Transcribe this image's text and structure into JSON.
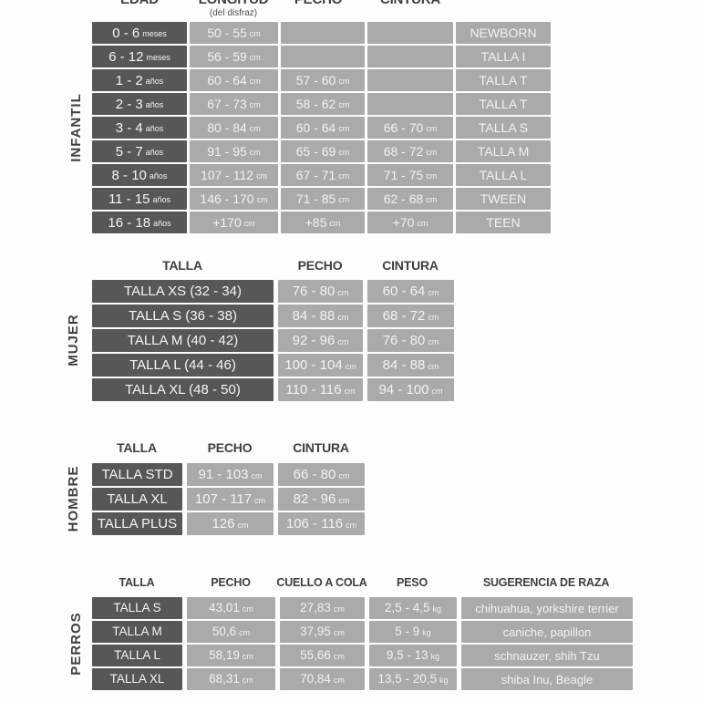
{
  "accent_colors": {
    "dark_cell": "#555759",
    "light_cell": "#a9aaac",
    "cell_text": "#f2f2f2",
    "header_text": "#3e4042",
    "background": "#fdfdfd"
  },
  "chart_data": [
    {
      "type": "table",
      "id": "infantil",
      "side_label": "INFANTIL",
      "headers": [
        {
          "label": "EDAD",
          "sub": ""
        },
        {
          "label": "LONGITUD",
          "sub": "(del disfraz)"
        },
        {
          "label": "PECHO",
          "sub": ""
        },
        {
          "label": "CINTURA",
          "sub": ""
        }
      ],
      "rows": [
        [
          {
            "t": "0 - 6",
            "u": "meses"
          },
          {
            "t": "50 - 55",
            "u": "cm"
          },
          {
            "t": ""
          },
          {
            "t": ""
          },
          {
            "t": "NEWBORN"
          }
        ],
        [
          {
            "t": "6 - 12",
            "u": "meses"
          },
          {
            "t": "56 - 59",
            "u": "cm"
          },
          {
            "t": ""
          },
          {
            "t": ""
          },
          {
            "t": "TALLA I"
          }
        ],
        [
          {
            "t": "1 - 2",
            "u": "años"
          },
          {
            "t": "60 - 64",
            "u": "cm"
          },
          {
            "t": "57 - 60",
            "u": "cm"
          },
          {
            "t": ""
          },
          {
            "t": "TALLA T"
          }
        ],
        [
          {
            "t": "2 - 3",
            "u": "años"
          },
          {
            "t": "67 - 73",
            "u": "cm"
          },
          {
            "t": "58 - 62",
            "u": "cm"
          },
          {
            "t": ""
          },
          {
            "t": "TALLA T"
          }
        ],
        [
          {
            "t": "3 - 4",
            "u": "años"
          },
          {
            "t": "80 - 84",
            "u": "cm"
          },
          {
            "t": "60 - 64",
            "u": "cm"
          },
          {
            "t": "66 - 70",
            "u": "cm"
          },
          {
            "t": "TALLA S"
          }
        ],
        [
          {
            "t": "5 - 7",
            "u": "años"
          },
          {
            "t": "91 - 95",
            "u": "cm"
          },
          {
            "t": "65 - 69",
            "u": "cm"
          },
          {
            "t": "68 - 72",
            "u": "cm"
          },
          {
            "t": "TALLA M"
          }
        ],
        [
          {
            "t": "8 - 10",
            "u": "años"
          },
          {
            "t": "107 - 112",
            "u": "cm"
          },
          {
            "t": "67 - 71",
            "u": "cm"
          },
          {
            "t": "71 - 75",
            "u": "cm"
          },
          {
            "t": "TALLA L"
          }
        ],
        [
          {
            "t": "11 - 15",
            "u": "años"
          },
          {
            "t": "146 - 170",
            "u": "cm"
          },
          {
            "t": "71 - 85",
            "u": "cm"
          },
          {
            "t": "62 - 68",
            "u": "cm"
          },
          {
            "t": "TWEEN"
          }
        ],
        [
          {
            "t": "16 - 18",
            "u": "años"
          },
          {
            "t": "+170",
            "u": "cm"
          },
          {
            "t": "+85",
            "u": "cm"
          },
          {
            "t": "+70",
            "u": "cm"
          },
          {
            "t": "TEEN"
          }
        ]
      ]
    },
    {
      "type": "table",
      "id": "mujer",
      "side_label": "MUJER",
      "headers": [
        {
          "label": "TALLA",
          "sub": ""
        },
        {
          "label": "PECHO",
          "sub": ""
        },
        {
          "label": "CINTURA",
          "sub": ""
        }
      ],
      "rows": [
        [
          {
            "t": "TALLA XS (32 - 34)"
          },
          {
            "t": "76 - 80",
            "u": "cm"
          },
          {
            "t": "60 - 64",
            "u": "cm"
          }
        ],
        [
          {
            "t": "TALLA S (36 - 38)"
          },
          {
            "t": "84 - 88",
            "u": "cm"
          },
          {
            "t": "68 - 72",
            "u": "cm"
          }
        ],
        [
          {
            "t": "TALLA M (40 - 42)"
          },
          {
            "t": "92 - 96",
            "u": "cm"
          },
          {
            "t": "76 - 80",
            "u": "cm"
          }
        ],
        [
          {
            "t": "TALLA L (44 - 46)"
          },
          {
            "t": "100 - 104",
            "u": "cm"
          },
          {
            "t": "84 - 88",
            "u": "cm"
          }
        ],
        [
          {
            "t": "TALLA XL (48 - 50)"
          },
          {
            "t": "110 - 116",
            "u": "cm"
          },
          {
            "t": "94 - 100",
            "u": "cm"
          }
        ]
      ]
    },
    {
      "type": "table",
      "id": "hombre",
      "side_label": "HOMBRE",
      "headers": [
        {
          "label": "TALLA",
          "sub": ""
        },
        {
          "label": "PECHO",
          "sub": ""
        },
        {
          "label": "CINTURA",
          "sub": ""
        }
      ],
      "rows": [
        [
          {
            "t": "TALLA STD"
          },
          {
            "t": "91 - 103",
            "u": "cm"
          },
          {
            "t": "66 - 80",
            "u": "cm"
          }
        ],
        [
          {
            "t": "TALLA XL"
          },
          {
            "t": "107 - 117",
            "u": "cm"
          },
          {
            "t": "82 - 96",
            "u": "cm"
          }
        ],
        [
          {
            "t": "TALLA PLUS"
          },
          {
            "t": "126",
            "u": "cm"
          },
          {
            "t": "106 - 116",
            "u": "cm"
          }
        ]
      ]
    },
    {
      "type": "table",
      "id": "perros",
      "side_label": "PERROS",
      "headers": [
        {
          "label": "TALLA",
          "sub": ""
        },
        {
          "label": "PECHO",
          "sub": ""
        },
        {
          "label": "CUELLO A COLA",
          "sub": ""
        },
        {
          "label": "PESO",
          "sub": ""
        },
        {
          "label": "SUGERENCIA DE RAZA",
          "sub": ""
        }
      ],
      "rows": [
        [
          {
            "t": "TALLA S"
          },
          {
            "t": "43,01",
            "u": "cm"
          },
          {
            "t": "27,83",
            "u": "cm"
          },
          {
            "t": "2,5 - 4,5",
            "u": "kg"
          },
          {
            "t": "chihuahua, yorkshire terrier"
          }
        ],
        [
          {
            "t": "TALLA M"
          },
          {
            "t": "50,6",
            "u": "cm"
          },
          {
            "t": "37,95",
            "u": "cm"
          },
          {
            "t": "5 - 9",
            "u": "kg"
          },
          {
            "t": "caniche, papillon"
          }
        ],
        [
          {
            "t": "TALLA L"
          },
          {
            "t": "58,19",
            "u": "cm"
          },
          {
            "t": "55,66",
            "u": "cm"
          },
          {
            "t": "9,5 - 13",
            "u": "kg"
          },
          {
            "t": "schnauzer, shih Tzu"
          }
        ],
        [
          {
            "t": "TALLA XL"
          },
          {
            "t": "68,31",
            "u": "cm"
          },
          {
            "t": "70,84",
            "u": "cm"
          },
          {
            "t": "13,5 - 20,5",
            "u": "kg"
          },
          {
            "t": "shiba Inu, Beagle"
          }
        ]
      ]
    }
  ]
}
